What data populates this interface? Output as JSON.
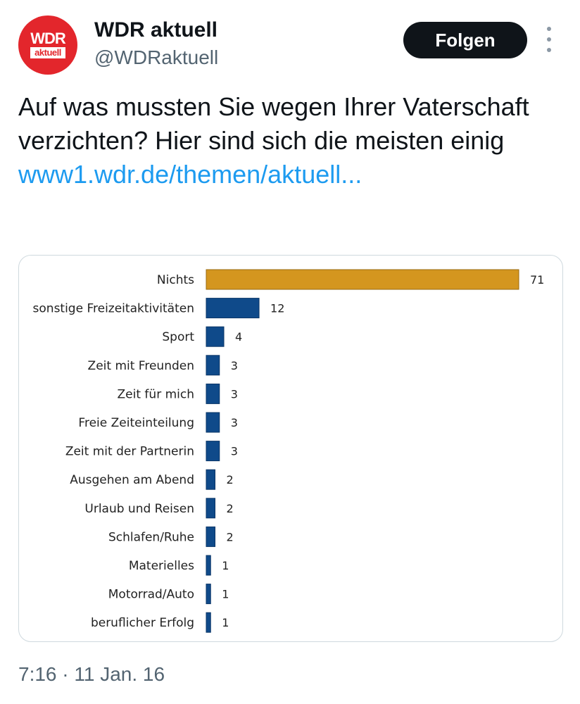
{
  "account": {
    "name": "WDR aktuell",
    "handle": "@WDRaktuell",
    "avatar_logo_text": "WDR",
    "avatar_logo_sub": "aktuell"
  },
  "follow_button_label": "Folgen",
  "tweet": {
    "text": "Auf was mussten Sie wegen Ihrer Vaterschaft verzichten? Hier sind sich die meisten  einig ",
    "link_text": "www1.wdr.de/themen/aktuell..."
  },
  "timestamp": "7:16 · 11 Jan. 16",
  "colors": {
    "highlight_bar": "#d4961f",
    "bar": "#0f4a8a",
    "follow_bg": "#0f1419",
    "link": "#1d9bf0"
  },
  "chart_data": {
    "type": "bar",
    "orientation": "horizontal",
    "categories": [
      "Nichts",
      "sonstige Freizeitaktivitäten",
      "Sport",
      "Zeit mit Freunden",
      "Zeit für mich",
      "Freie Zeiteinteilung",
      "Zeit mit der Partnerin",
      "Ausgehen am Abend",
      "Urlaub und Reisen",
      "Schlafen/Ruhe",
      "Materielles",
      "Motorrad/Auto",
      "beruflicher Erfolg"
    ],
    "values": [
      71,
      12,
      4,
      3,
      3,
      3,
      3,
      2,
      2,
      2,
      1,
      1,
      1
    ],
    "value_labels": [
      "71",
      "12",
      "4",
      "3",
      "3",
      "3",
      "3",
      "2",
      "2",
      "2",
      "1",
      "1",
      "1"
    ],
    "highlight_index": 0,
    "xlim": [
      0,
      71
    ],
    "grid": false,
    "legend": "none"
  }
}
